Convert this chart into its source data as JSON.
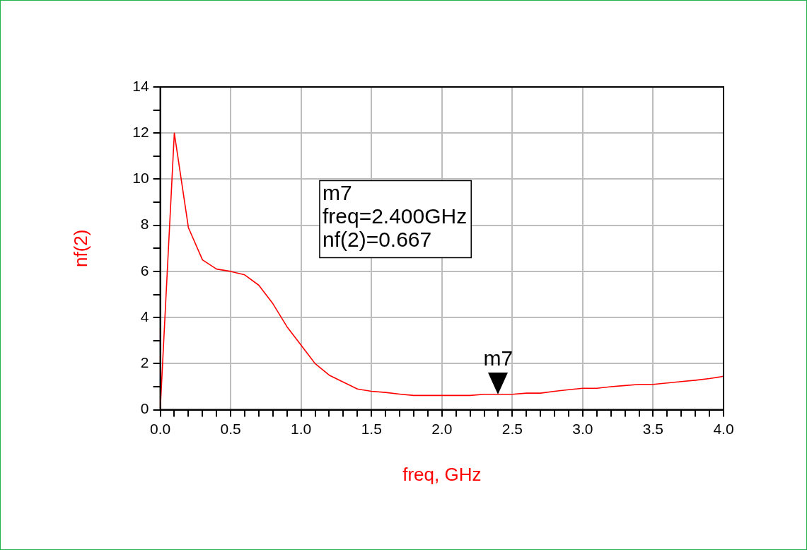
{
  "chart_data": {
    "type": "line",
    "xlabel": "freq, GHz",
    "ylabel": "nf(2)",
    "x": [
      0,
      0.1,
      0.2,
      0.3,
      0.4,
      0.5,
      0.6,
      0.7,
      0.8,
      0.9,
      1.0,
      1.1,
      1.2,
      1.3,
      1.4,
      1.5,
      1.6,
      1.7,
      1.8,
      1.9,
      2.0,
      2.1,
      2.2,
      2.3,
      2.4,
      2.5,
      2.6,
      2.7,
      2.8,
      2.9,
      3.0,
      3.1,
      3.2,
      3.3,
      3.4,
      3.5,
      3.6,
      3.7,
      3.8,
      3.9,
      4.0
    ],
    "series": [
      {
        "color": "#ff0000",
        "values": [
          0,
          12,
          7.9,
          6.5,
          6.1,
          6.0,
          5.85,
          5.4,
          4.6,
          3.6,
          2.8,
          2.0,
          1.5,
          1.2,
          0.9,
          0.8,
          0.75,
          0.68,
          0.62,
          0.62,
          0.62,
          0.62,
          0.62,
          0.67,
          0.67,
          0.67,
          0.72,
          0.72,
          0.8,
          0.87,
          0.93,
          0.93,
          1.0,
          1.05,
          1.1,
          1.1,
          1.16,
          1.22,
          1.28,
          1.35,
          1.45
        ]
      }
    ],
    "xlim": [
      0,
      4
    ],
    "xticks": [
      {
        "value": 0,
        "label": "0.0"
      },
      {
        "value": 0.1,
        "label": null
      },
      {
        "value": 0.2,
        "label": null
      },
      {
        "value": 0.3,
        "label": null
      },
      {
        "value": 0.4,
        "label": null
      },
      {
        "value": 0.5,
        "label": "0.5"
      },
      {
        "value": 0.6,
        "label": null
      },
      {
        "value": 0.7,
        "label": null
      },
      {
        "value": 0.8,
        "label": null
      },
      {
        "value": 0.9,
        "label": null
      },
      {
        "value": 1,
        "label": "1.0"
      },
      {
        "value": 1.1,
        "label": null
      },
      {
        "value": 1.2,
        "label": null
      },
      {
        "value": 1.3,
        "label": null
      },
      {
        "value": 1.4,
        "label": null
      },
      {
        "value": 1.5,
        "label": "1.5"
      },
      {
        "value": 1.6,
        "label": null
      },
      {
        "value": 1.7,
        "label": null
      },
      {
        "value": 1.8,
        "label": null
      },
      {
        "value": 1.9,
        "label": null
      },
      {
        "value": 2,
        "label": "2.0"
      },
      {
        "value": 2.1,
        "label": null
      },
      {
        "value": 2.2,
        "label": null
      },
      {
        "value": 2.3,
        "label": null
      },
      {
        "value": 2.4,
        "label": null
      },
      {
        "value": 2.5,
        "label": "2.5"
      },
      {
        "value": 2.6,
        "label": null
      },
      {
        "value": 2.7,
        "label": null
      },
      {
        "value": 2.8,
        "label": null
      },
      {
        "value": 2.9,
        "label": null
      },
      {
        "value": 3,
        "label": "3.0"
      },
      {
        "value": 3.1,
        "label": null
      },
      {
        "value": 3.2,
        "label": null
      },
      {
        "value": 3.3,
        "label": null
      },
      {
        "value": 3.4,
        "label": null
      },
      {
        "value": 3.5,
        "label": "3.5"
      },
      {
        "value": 3.6,
        "label": null
      },
      {
        "value": 3.7,
        "label": null
      },
      {
        "value": 3.8,
        "label": null
      },
      {
        "value": 3.9,
        "label": null
      },
      {
        "value": 4,
        "label": "4.0"
      }
    ],
    "ylim": [
      0,
      14
    ],
    "yticks": [
      0,
      {
        "value": 1,
        "label": null
      },
      2,
      {
        "value": 3,
        "label": null
      },
      4,
      {
        "value": 5,
        "label": null
      },
      6,
      {
        "value": 7,
        "label": null
      },
      8,
      {
        "value": 9,
        "label": null
      },
      10,
      {
        "value": 11,
        "label": null
      },
      12,
      {
        "value": 13,
        "label": null
      },
      14
    ],
    "grid": true,
    "legend": false,
    "marker": "none",
    "line_style": "solid",
    "annotations": [
      "m7",
      "freq=2.400GHz",
      "nf(2)=0.667",
      {
        "text": "m7",
        "x": 2.4,
        "y": 0.667
      }
    ]
  }
}
